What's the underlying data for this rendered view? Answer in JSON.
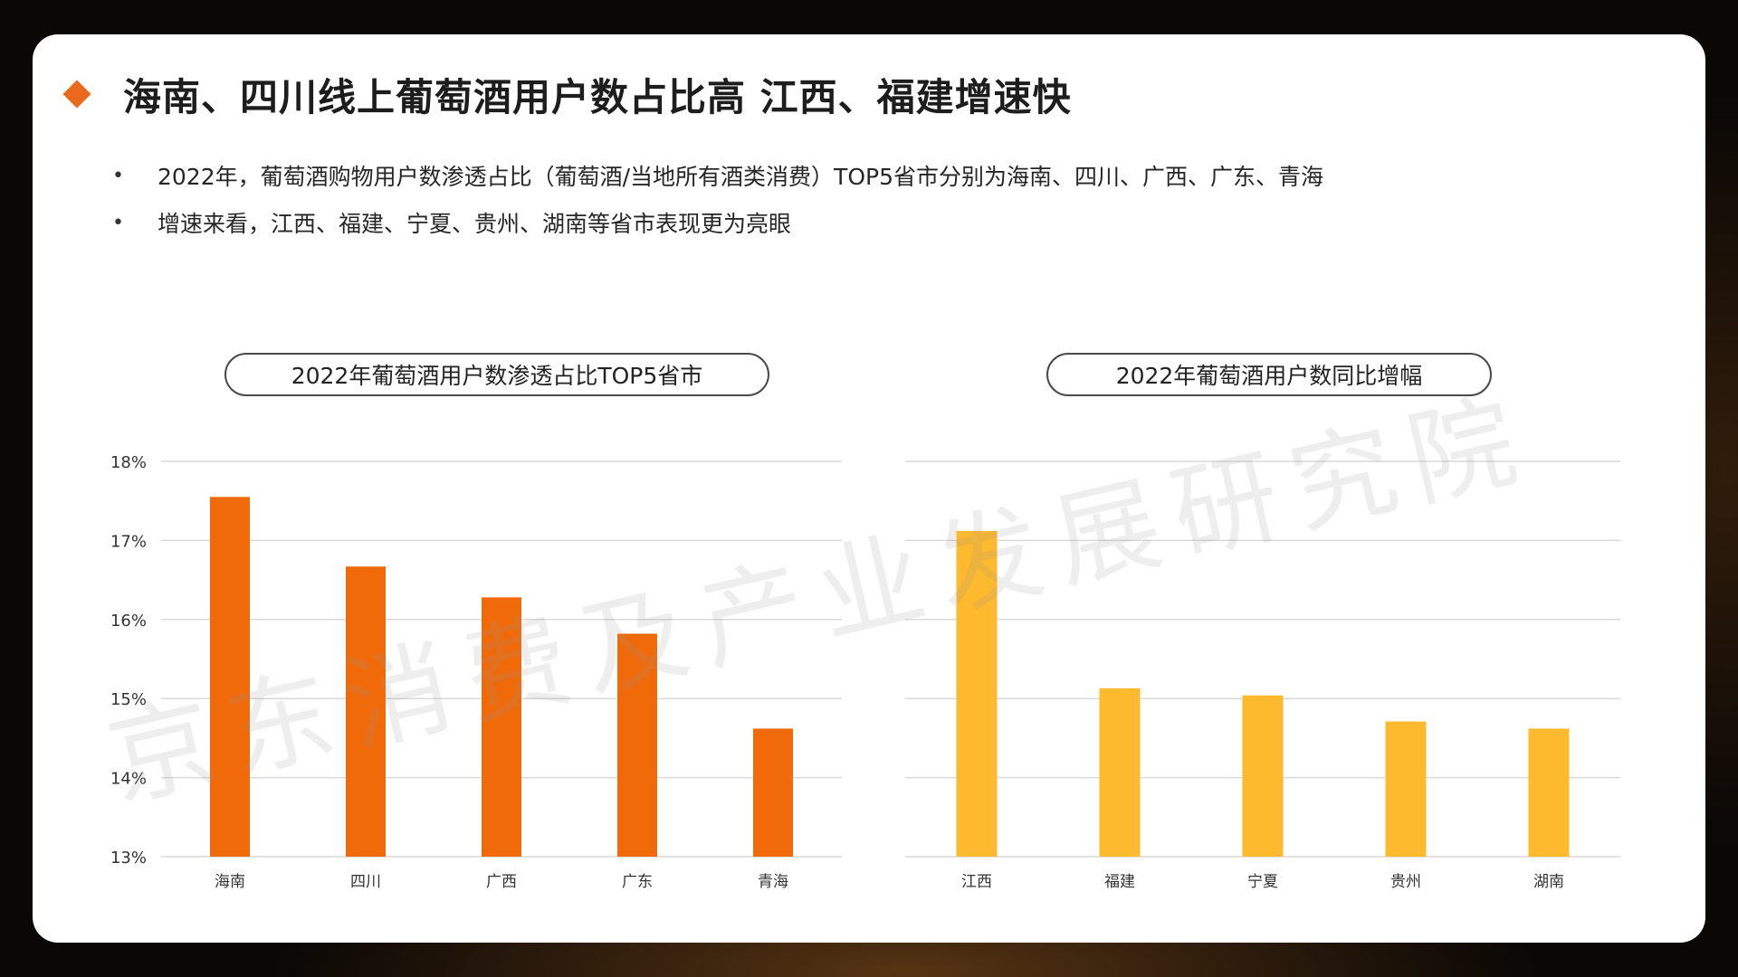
{
  "slide": {
    "title": "海南、四川线上葡萄酒用户数占比高 江西、福建增速快",
    "bullets": [
      "2022年，葡萄酒购物用户数渗透占比（葡萄酒/当地所有酒类消费）TOP5省市分别为海南、四川、广西、广东、青海",
      "增速来看，江西、福建、宁夏、贵州、湖南等省市表现更为亮眼"
    ],
    "watermark": "京东消费及产业发展研究院",
    "bullet_symbol": "•"
  },
  "colors": {
    "accent": "#ea6a1d",
    "bar_left": "#f06a0a",
    "bar_right": "#fdba2e",
    "grid": "#d9d9d9",
    "axis_text": "#333333"
  },
  "chart_data": [
    {
      "type": "bar",
      "title": "2022年葡萄酒用户数渗透占比TOP5省市",
      "categories": [
        "海南",
        "四川",
        "广西",
        "广东",
        "青海"
      ],
      "values": [
        17.55,
        16.67,
        16.28,
        15.82,
        14.62
      ],
      "ylim": [
        13,
        18
      ],
      "yticks": [
        "13%",
        "14%",
        "15%",
        "16%",
        "17%",
        "18%"
      ],
      "grid": true,
      "color": "#f06a0a"
    },
    {
      "type": "bar",
      "title": "2022年葡萄酒用户数同比增幅",
      "categories": [
        "江西",
        "福建",
        "宁夏",
        "贵州",
        "湖南"
      ],
      "values": [
        17.12,
        15.13,
        15.04,
        14.71,
        14.62
      ],
      "ylim": [
        13,
        18
      ],
      "grid": true,
      "color": "#fdba2e"
    }
  ]
}
